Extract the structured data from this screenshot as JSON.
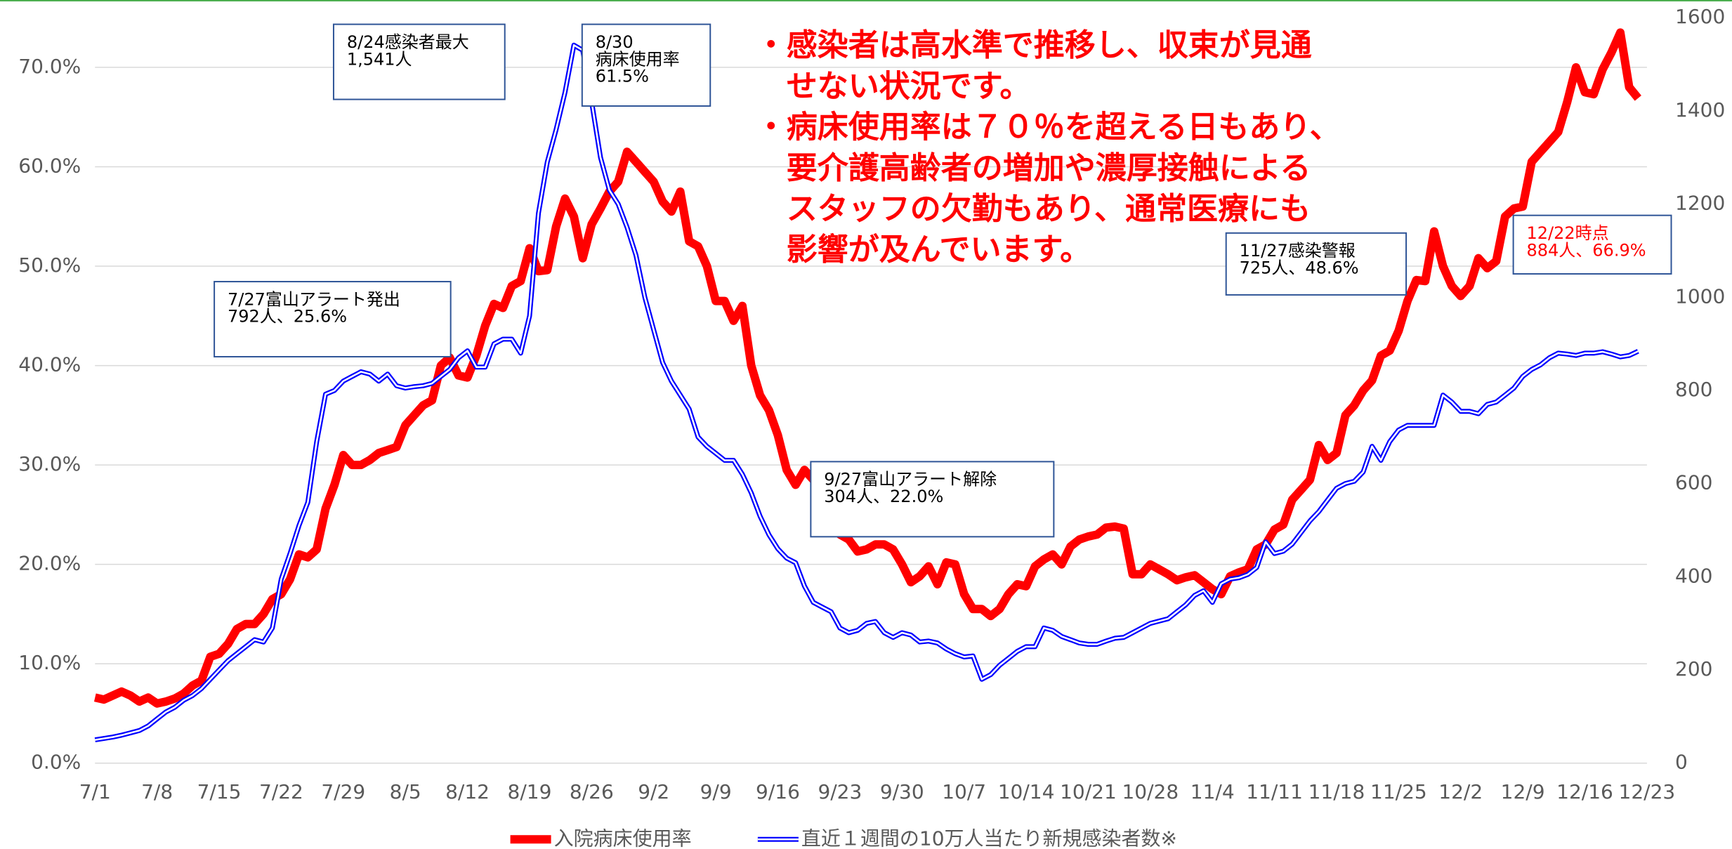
{
  "chart_data": {
    "type": "line",
    "categories": [
      "7/1",
      null,
      null,
      null,
      null,
      null,
      null,
      "7/8",
      null,
      null,
      null,
      null,
      null,
      null,
      "7/15",
      null,
      null,
      null,
      null,
      null,
      null,
      "7/22",
      null,
      null,
      null,
      null,
      null,
      null,
      "7/29",
      null,
      null,
      null,
      null,
      null,
      null,
      "8/5",
      null,
      null,
      null,
      null,
      null,
      null,
      "8/12",
      null,
      null,
      null,
      null,
      null,
      null,
      "8/19",
      null,
      null,
      null,
      null,
      null,
      null,
      "8/26",
      null,
      null,
      null,
      null,
      null,
      null,
      "9/2",
      null,
      null,
      null,
      null,
      null,
      null,
      "9/9",
      null,
      null,
      null,
      null,
      null,
      null,
      "9/16",
      null,
      null,
      null,
      null,
      null,
      null,
      "9/23",
      null,
      null,
      null,
      null,
      null,
      null,
      "9/30",
      null,
      null,
      null,
      null,
      null,
      null,
      "10/7",
      null,
      null,
      null,
      null,
      null,
      null,
      "10/14",
      null,
      null,
      null,
      null,
      null,
      null,
      "10/21",
      null,
      null,
      null,
      null,
      null,
      null,
      "10/28",
      null,
      null,
      null,
      null,
      null,
      null,
      "11/4",
      null,
      null,
      null,
      null,
      null,
      null,
      "11/11",
      null,
      null,
      null,
      null,
      null,
      null,
      "11/18",
      null,
      null,
      null,
      null,
      null,
      null,
      "11/25",
      null,
      null,
      null,
      null,
      null,
      null,
      "12/2",
      null,
      null,
      null,
      null,
      null,
      null,
      "12/9",
      null,
      null,
      null,
      null,
      null,
      null,
      "12/16",
      null,
      null,
      null,
      null,
      null,
      null,
      "12/23"
    ],
    "series": [
      {
        "name": "入院病床使用率",
        "color": "#ff0000",
        "values": [
          6.6,
          6.4,
          6.8,
          7.2,
          6.8,
          6.2,
          6.6,
          6.0,
          6.2,
          6.5,
          7.0,
          7.8,
          8.3,
          10.7,
          11.0,
          12.0,
          13.5,
          14.0,
          14.0,
          15.0,
          16.5,
          17.0,
          18.5,
          21.0,
          20.7,
          21.5,
          25.6,
          28.0,
          31.0,
          30.0,
          30.0,
          30.5,
          31.2,
          31.5,
          31.8,
          34.0,
          35.0,
          36.0,
          36.5,
          40.0,
          40.8,
          39.0,
          38.8,
          41.0,
          44.0,
          46.2,
          45.8,
          48.0,
          48.5,
          51.8,
          49.5,
          49.6,
          54.0,
          56.8,
          55.0,
          50.8,
          54.2,
          55.8,
          57.5,
          58.5,
          61.5,
          60.5,
          59.5,
          58.5,
          56.5,
          55.5,
          57.5,
          52.5,
          52.0,
          50.0,
          46.5,
          46.5,
          44.5,
          46.0,
          40.0,
          37.0,
          35.5,
          33.0,
          29.5,
          28.0,
          29.5,
          28.5,
          27.0,
          26.0,
          23.0,
          22.5,
          21.3,
          21.5,
          22.0,
          22.0,
          21.5,
          20.0,
          18.2,
          18.8,
          19.8,
          18.0,
          20.2,
          20.0,
          17.0,
          15.5,
          15.5,
          14.8,
          15.5,
          17.0,
          18.0,
          17.8,
          19.8,
          20.5,
          21.0,
          20.0,
          21.8,
          22.5,
          22.8,
          23.0,
          23.7,
          23.8,
          23.6,
          19.0,
          19.0,
          20.0,
          19.5,
          19.0,
          18.4,
          18.7,
          18.9,
          18.2,
          17.5,
          17.0,
          18.8,
          19.2,
          19.5,
          21.5,
          22.0,
          23.5,
          24.0,
          26.5,
          27.5,
          28.5,
          32.0,
          30.5,
          31.2,
          35.0,
          36.0,
          37.5,
          38.5,
          41.0,
          41.5,
          43.5,
          46.5,
          48.6,
          48.5,
          53.5,
          50.0,
          48.0,
          47.0,
          48.0,
          50.8,
          49.8,
          50.5,
          55.0,
          55.8,
          56.0,
          60.5,
          61.5,
          62.5,
          63.5,
          66.5,
          70.0,
          67.5,
          67.3,
          69.8,
          71.5,
          73.5,
          68.0,
          66.9,
          null
        ]
      },
      {
        "name": "直近１週間の10万人当たり新規感染者数※",
        "color": "#0000ff",
        "axis": "y2",
        "values": [
          50,
          53,
          56,
          60,
          65,
          70,
          80,
          95,
          110,
          120,
          135,
          145,
          160,
          180,
          200,
          220,
          235,
          250,
          265,
          260,
          290,
          395,
          450,
          510,
          560,
          690,
          792,
          800,
          820,
          830,
          840,
          835,
          820,
          835,
          810,
          805,
          808,
          810,
          815,
          830,
          845,
          870,
          885,
          850,
          850,
          900,
          910,
          910,
          880,
          960,
          1180,
          1290,
          1360,
          1440,
          1541,
          1530,
          1420,
          1300,
          1230,
          1200,
          1150,
          1090,
          1000,
          930,
          860,
          820,
          790,
          760,
          700,
          680,
          665,
          650,
          650,
          620,
          580,
          530,
          490,
          460,
          440,
          430,
          380,
          345,
          335,
          325,
          290,
          280,
          285,
          300,
          304,
          280,
          270,
          280,
          275,
          260,
          262,
          258,
          245,
          235,
          228,
          230,
          180,
          190,
          210,
          225,
          240,
          250,
          250,
          290,
          285,
          272,
          265,
          258,
          255,
          255,
          262,
          268,
          270,
          280,
          290,
          300,
          305,
          310,
          325,
          340,
          360,
          370,
          345,
          385,
          395,
          398,
          405,
          420,
          475,
          450,
          455,
          470,
          495,
          520,
          540,
          565,
          590,
          600,
          605,
          625,
          680,
          650,
          690,
          715,
          725,
          725,
          725,
          725,
          790,
          775,
          755,
          755,
          750,
          770,
          775,
          790,
          805,
          830,
          845,
          855,
          870,
          880,
          878,
          875,
          880,
          880,
          883,
          878,
          872,
          875,
          884,
          null
        ]
      }
    ],
    "ylim": [
      0,
      75
    ],
    "yticks": [
      {
        "value": 0,
        "label": "0.0%"
      },
      {
        "value": 10,
        "label": "10.0%"
      },
      {
        "value": 20,
        "label": "20.0%"
      },
      {
        "value": 30,
        "label": "30.0%"
      },
      {
        "value": 40,
        "label": "40.0%"
      },
      {
        "value": 50,
        "label": "50.0%"
      },
      {
        "value": 60,
        "label": "60.0%"
      },
      {
        "value": 70,
        "label": "70.0%"
      }
    ],
    "y2lim": [
      0,
      1600
    ],
    "y2ticks": [
      0,
      200,
      400,
      600,
      800,
      1000,
      1200,
      1400,
      1600
    ],
    "grid": true,
    "legend": "bottom",
    "annotations": [
      {
        "lines": [
          "8/24感染者最大",
          "1,541人"
        ]
      },
      {
        "lines": [
          "8/30",
          "病床使用率",
          "61.5%"
        ]
      },
      {
        "lines": [
          "7/27富山アラート発出",
          "792人、25.6%"
        ]
      },
      {
        "lines": [
          "9/27富山アラート解除",
          "304人、22.0%"
        ]
      },
      {
        "lines": [
          "11/27感染警報",
          " 725人、48.6%"
        ]
      },
      {
        "lines": [
          "12/22時点",
          " 884人、66.9%"
        ],
        "color": "#ff0000"
      }
    ],
    "notes": {
      "color": "#ff0000",
      "lines": [
        "・感染者は高水準で推移し、収束が見通",
        "　せない状況です。",
        "・病床使用率は７０％を超える日もあり、",
        "　要介護高齢者の増加や濃厚接触による",
        "　スタッフの欠勤もあり、通常医療にも",
        "　影響が及んでいます。"
      ]
    }
  }
}
